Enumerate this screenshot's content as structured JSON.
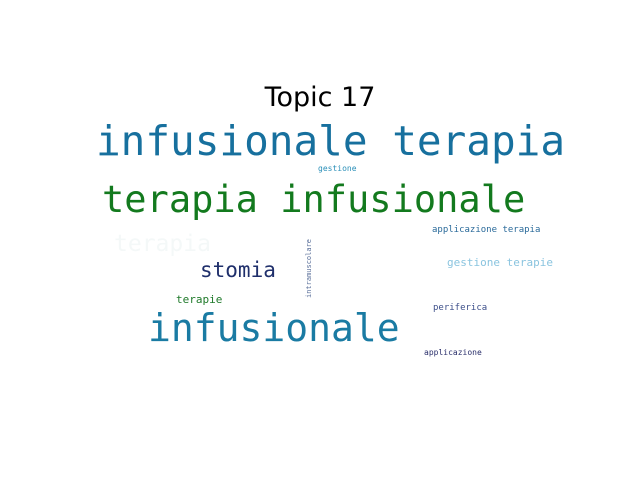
{
  "figure": {
    "title": "Topic 17"
  },
  "words": [
    {
      "text": "infusionale terapia",
      "color": "#17709e"
    },
    {
      "text": "terapia infusionale",
      "color": "#137a1e"
    },
    {
      "text": "infusionale",
      "color": "#1a7ba3"
    },
    {
      "text": "terapia",
      "color": "#f4f8f8"
    },
    {
      "text": "stomia",
      "color": "#1f2f6b"
    },
    {
      "text": "terapie",
      "color": "#1f7a2a"
    },
    {
      "text": "gestione",
      "color": "#2a8fb8"
    },
    {
      "text": "applicazione terapia",
      "color": "#2a6a9a"
    },
    {
      "text": "gestione terapie",
      "color": "#8ac4df"
    },
    {
      "text": "periferica",
      "color": "#3d4f8a"
    },
    {
      "text": "applicazione",
      "color": "#2a2f6b"
    },
    {
      "text": "intramuscolare",
      "color": "#5a6f9a"
    }
  ]
}
